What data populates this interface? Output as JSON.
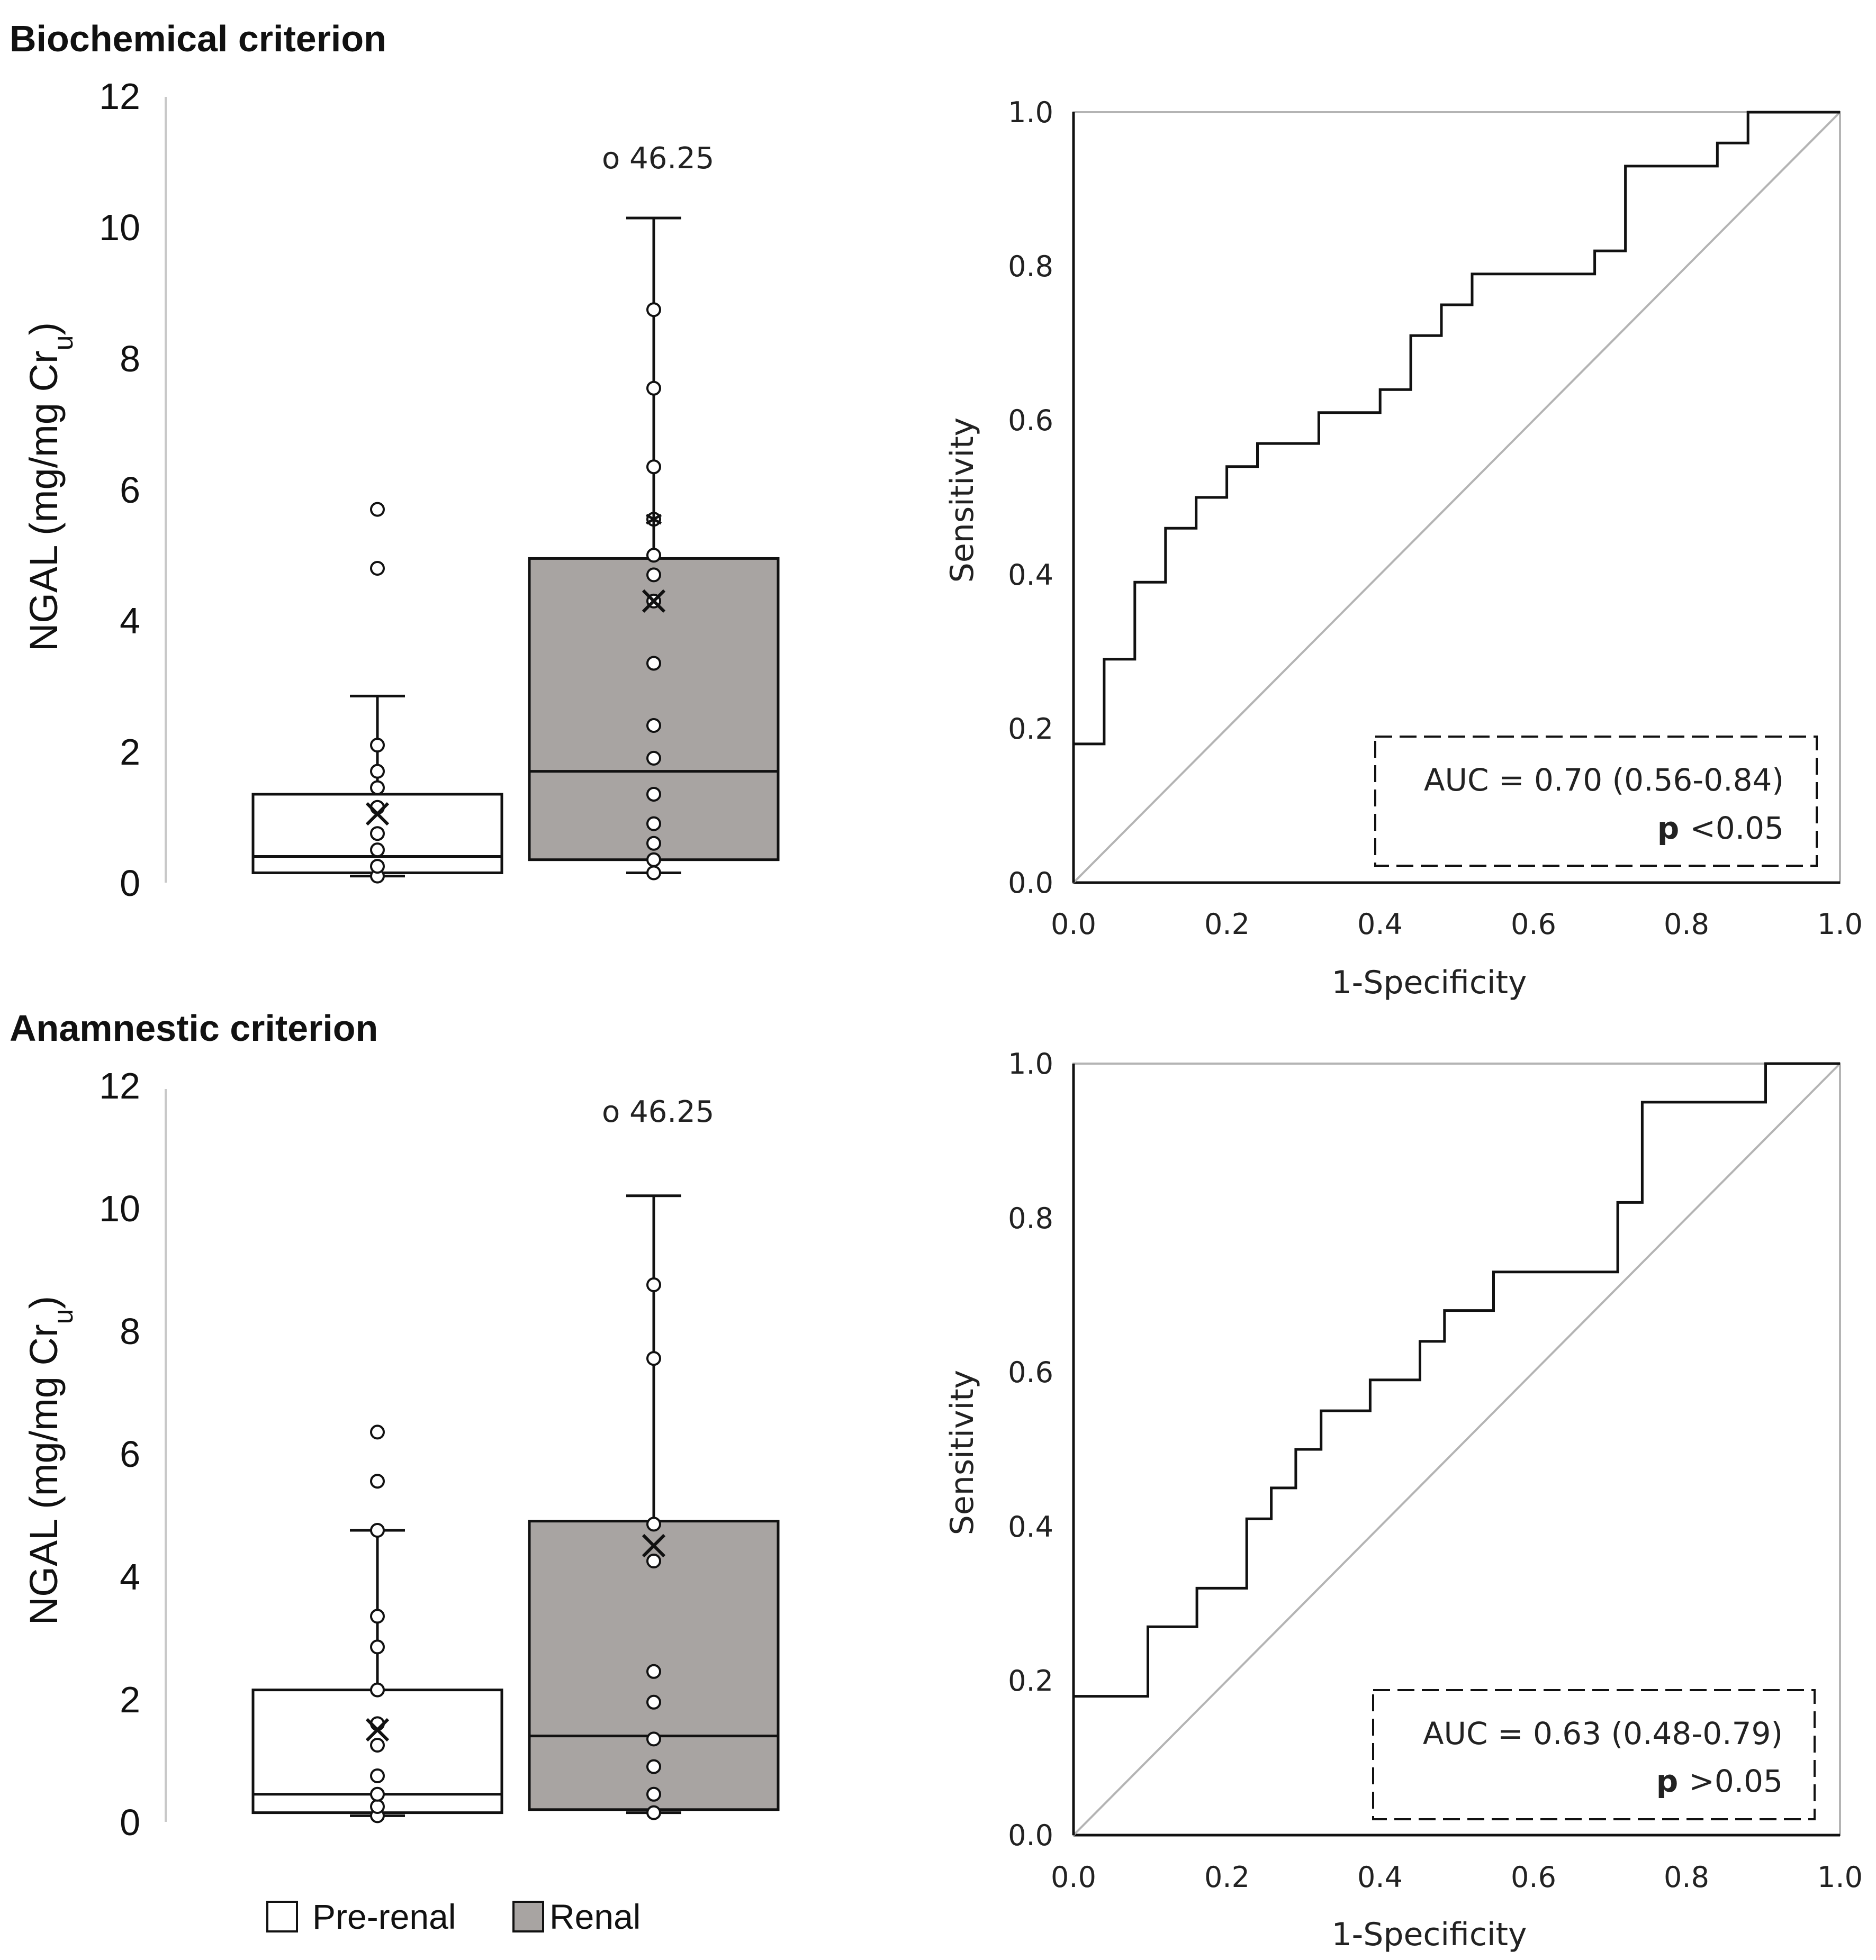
{
  "colors": {
    "axis": "#111111",
    "grid_light": "#c8c8c8",
    "box_prerenal": "#ffffff",
    "box_renal": "#a8a4a2",
    "diagonal": "#b4b4b4"
  },
  "legend": {
    "prerenal_label": "Pre-renal",
    "renal_label": "Renal"
  },
  "chart_data": [
    {
      "type": "boxplot",
      "section_title": "Biochemical criterion",
      "ylabel_main": "NGAL (mg/mg Cr",
      "ylabel_sub": "u",
      "ylabel_close": ")",
      "ylim": [
        0,
        12
      ],
      "yticks": [
        "0",
        "2",
        "4",
        "6",
        "8",
        "10",
        "12"
      ],
      "outlier_note": "o 46.25",
      "groups": [
        {
          "name": "Pre-renal",
          "q1": 0.15,
          "median": 0.4,
          "q3": 1.35,
          "whisker_low": 0.1,
          "whisker_high": 2.85,
          "mean": 1.05,
          "points": [
            0.1,
            0.25,
            0.5,
            0.75,
            1.15,
            1.45,
            1.7,
            2.1,
            4.8,
            5.7
          ]
        },
        {
          "name": "Renal",
          "q1": 0.35,
          "median": 1.7,
          "q3": 4.95,
          "whisker_low": 0.15,
          "whisker_high": 10.15,
          "mean": 4.3,
          "star": 5.55,
          "points": [
            0.15,
            0.35,
            0.6,
            0.9,
            1.35,
            1.9,
            2.4,
            3.35,
            4.3,
            4.7,
            5.0,
            5.55,
            6.35,
            7.55,
            8.75
          ]
        }
      ]
    },
    {
      "type": "line",
      "xlabel": "1-Specificity",
      "ylabel": "Sensitivity",
      "xlim": [
        0,
        1
      ],
      "ylim": [
        0,
        1
      ],
      "xticks": [
        "0.0",
        "0.2",
        "0.4",
        "0.6",
        "0.8",
        "1.0"
      ],
      "yticks": [
        "0.0",
        "0.2",
        "0.4",
        "0.6",
        "0.8",
        "1.0"
      ],
      "auc_text": "AUC = 0.70 (0.56-0.84)",
      "p_bold": "p",
      "p_text": "<0.05",
      "x": [
        0,
        0,
        0.04,
        0.04,
        0.08,
        0.08,
        0.12,
        0.12,
        0.16,
        0.16,
        0.2,
        0.2,
        0.24,
        0.24,
        0.32,
        0.32,
        0.4,
        0.4,
        0.44,
        0.44,
        0.48,
        0.48,
        0.52,
        0.52,
        0.68,
        0.68,
        0.72,
        0.72,
        0.84,
        0.84,
        0.88,
        0.88,
        1.0
      ],
      "y": [
        0,
        0.18,
        0.18,
        0.29,
        0.29,
        0.39,
        0.39,
        0.46,
        0.46,
        0.5,
        0.5,
        0.54,
        0.54,
        0.57,
        0.57,
        0.61,
        0.61,
        0.64,
        0.64,
        0.71,
        0.71,
        0.75,
        0.75,
        0.79,
        0.79,
        0.82,
        0.82,
        0.93,
        0.93,
        0.96,
        0.96,
        1.0,
        1.0
      ]
    },
    {
      "type": "boxplot",
      "section_title": "Anamnestic criterion",
      "ylabel_main": "NGAL (mg/mg Cr",
      "ylabel_sub": "u",
      "ylabel_close": ")",
      "ylim": [
        0,
        12
      ],
      "yticks": [
        "0",
        "2",
        "4",
        "6",
        "8",
        "10",
        "12"
      ],
      "outlier_note": "o 46.25",
      "groups": [
        {
          "name": "Pre-renal",
          "q1": 0.15,
          "median": 0.45,
          "q3": 2.15,
          "whisker_low": 0.1,
          "whisker_high": 4.75,
          "mean": 1.5,
          "points": [
            0.1,
            0.25,
            0.45,
            0.75,
            1.25,
            1.6,
            2.15,
            2.85,
            3.35,
            4.75,
            5.55,
            6.35
          ]
        },
        {
          "name": "Renal",
          "q1": 0.2,
          "median": 1.4,
          "q3": 4.9,
          "whisker_low": 0.15,
          "whisker_high": 10.2,
          "mean": 4.5,
          "points": [
            0.15,
            0.45,
            0.9,
            1.35,
            1.95,
            2.45,
            4.25,
            4.85,
            7.55,
            8.75
          ]
        }
      ]
    },
    {
      "type": "line",
      "xlabel": "1-Specificity",
      "ylabel": "Sensitivity",
      "xlim": [
        0,
        1
      ],
      "ylim": [
        0,
        1
      ],
      "xticks": [
        "0.0",
        "0.2",
        "0.4",
        "0.6",
        "0.8",
        "1.0"
      ],
      "yticks": [
        "0.0",
        "0.2",
        "0.4",
        "0.6",
        "0.8",
        "1.0"
      ],
      "auc_text": "AUC = 0.63 (0.48-0.79)",
      "p_bold": "p",
      "p_text": ">0.05",
      "x": [
        0,
        0,
        0.097,
        0.097,
        0.161,
        0.161,
        0.226,
        0.226,
        0.258,
        0.258,
        0.29,
        0.29,
        0.323,
        0.323,
        0.387,
        0.387,
        0.452,
        0.452,
        0.484,
        0.484,
        0.548,
        0.548,
        0.71,
        0.71,
        0.742,
        0.742,
        0.903,
        0.903,
        1.0
      ],
      "y": [
        0,
        0.18,
        0.18,
        0.27,
        0.27,
        0.32,
        0.32,
        0.41,
        0.41,
        0.45,
        0.45,
        0.5,
        0.5,
        0.55,
        0.55,
        0.59,
        0.59,
        0.64,
        0.64,
        0.68,
        0.68,
        0.73,
        0.73,
        0.82,
        0.82,
        0.95,
        0.95,
        1.0,
        1.0
      ]
    }
  ]
}
